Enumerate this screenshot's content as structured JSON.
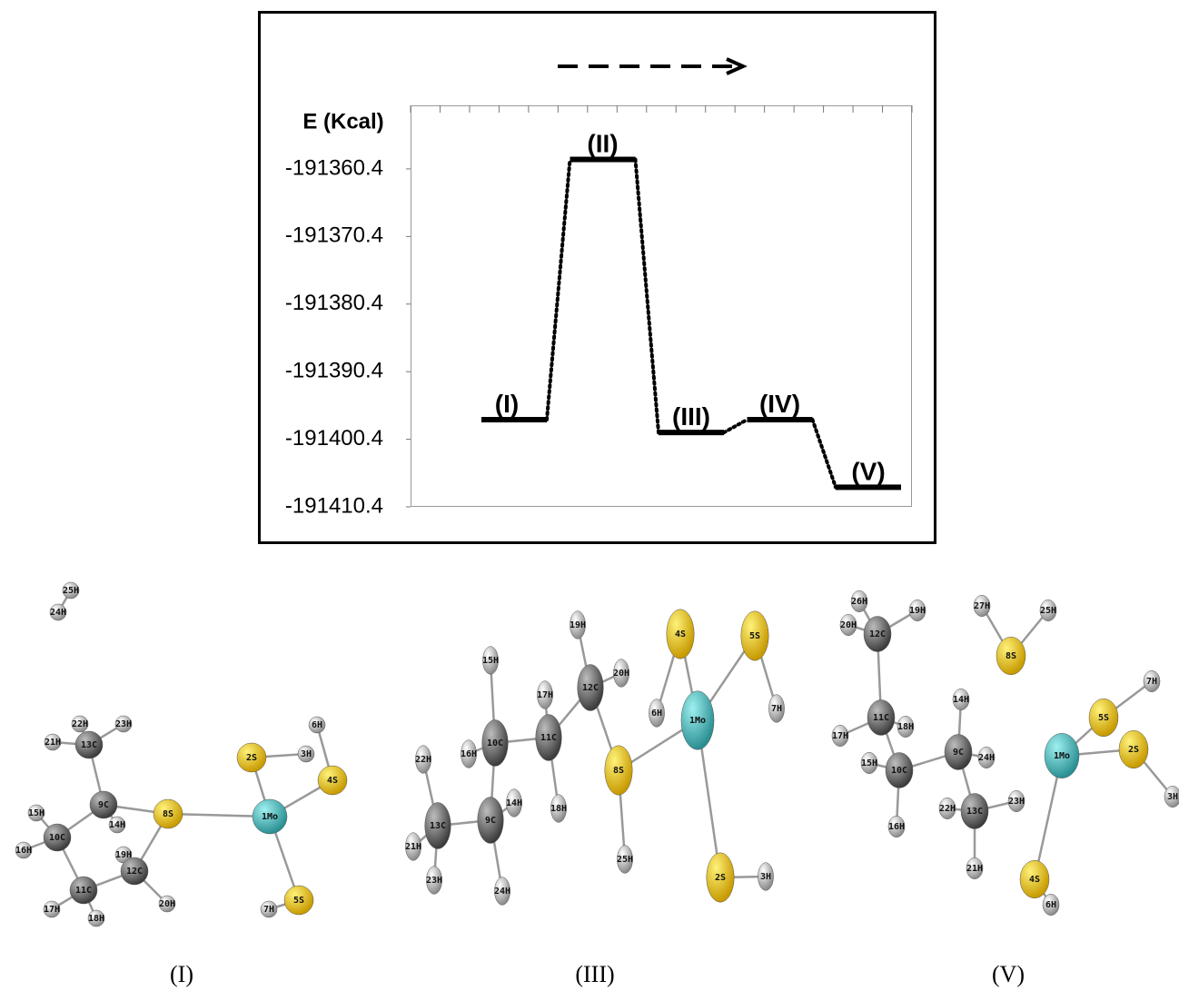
{
  "chart_data": {
    "type": "energy-level",
    "y_label": "E (Kcal)",
    "categories": [
      "(I)",
      "(II)",
      "(III)",
      "(IV)",
      "(V)"
    ],
    "values": [
      -191397.5,
      -191359.0,
      -191399.4,
      -191397.5,
      -191407.5
    ],
    "color": "#000000",
    "ylim": [
      -191410.4,
      -191351.0
    ],
    "yticks": [
      -191410.4,
      -191400.4,
      -191390.4,
      -191380.4,
      -191370.4,
      -191360.4
    ],
    "grid": false
  },
  "molecules": [
    {
      "caption": "(I)",
      "atoms": [
        "25H",
        "24H",
        "22H",
        "23H",
        "21H",
        "13C",
        "6H",
        "2S",
        "3H",
        "4S",
        "15H",
        "9C",
        "8S",
        "14H",
        "1Mo",
        "10C",
        "16H",
        "19H",
        "12C",
        "11C",
        "20H",
        "7H",
        "5S",
        "17H",
        "18H"
      ]
    },
    {
      "caption": "(III)",
      "atoms": [
        "19H",
        "4S",
        "5S",
        "15H",
        "20H",
        "12C",
        "17H",
        "6H",
        "1Mo",
        "7H",
        "11C",
        "10C",
        "16H",
        "22H",
        "8S",
        "13C",
        "14H",
        "18H",
        "9C",
        "21H",
        "25H",
        "2S",
        "3H",
        "23H",
        "24H"
      ]
    },
    {
      "caption": "(V)",
      "atoms": [
        "26H",
        "19H",
        "27H",
        "25H",
        "20H",
        "12C",
        "8S",
        "7H",
        "14H",
        "11C",
        "18H",
        "5S",
        "17H",
        "9C",
        "24H",
        "1Mo",
        "2S",
        "15H",
        "10C",
        "3H",
        "23H",
        "22H",
        "13C",
        "16H",
        "21H",
        "4S",
        "6H"
      ]
    }
  ]
}
